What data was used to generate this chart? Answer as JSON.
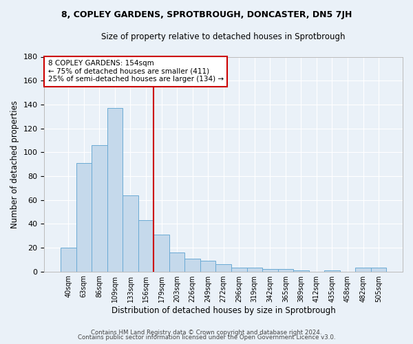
{
  "title1": "8, COPLEY GARDENS, SPROTBROUGH, DONCASTER, DN5 7JH",
  "title2": "Size of property relative to detached houses in Sprotbrough",
  "xlabel": "Distribution of detached houses by size in Sprotbrough",
  "ylabel": "Number of detached properties",
  "bar_labels": [
    "40sqm",
    "63sqm",
    "86sqm",
    "109sqm",
    "133sqm",
    "156sqm",
    "179sqm",
    "203sqm",
    "226sqm",
    "249sqm",
    "272sqm",
    "296sqm",
    "319sqm",
    "342sqm",
    "365sqm",
    "389sqm",
    "412sqm",
    "435sqm",
    "458sqm",
    "482sqm",
    "505sqm"
  ],
  "bar_values": [
    20,
    91,
    106,
    137,
    64,
    43,
    31,
    16,
    11,
    9,
    6,
    3,
    3,
    2,
    2,
    1,
    0,
    1,
    0,
    3,
    3
  ],
  "bar_color": "#c5d9eb",
  "bar_edge_color": "#6aaad4",
  "vline_color": "#cc0000",
  "annotation_line1": "8 COPLEY GARDENS: 154sqm",
  "annotation_line2": "← 75% of detached houses are smaller (411)",
  "annotation_line3": "25% of semi-detached houses are larger (134) →",
  "ylim": [
    0,
    180
  ],
  "yticks": [
    0,
    20,
    40,
    60,
    80,
    100,
    120,
    140,
    160,
    180
  ],
  "footnote1": "Contains HM Land Registry data © Crown copyright and database right 2024.",
  "footnote2": "Contains public sector information licensed under the Open Government Licence v3.0.",
  "bg_color": "#eaf1f8",
  "plot_bg_color": "#eaf1f8",
  "vline_bar_index": 5
}
